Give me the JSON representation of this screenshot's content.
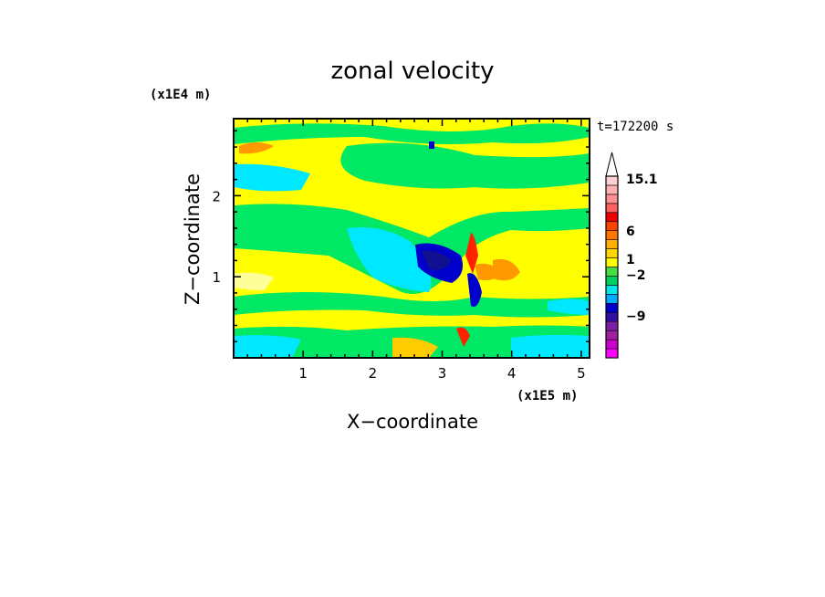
{
  "chart_data": {
    "type": "heatmap",
    "title": "zonal velocity",
    "xlabel": "X−coordinate",
    "ylabel": "Z−coordinate",
    "x_unit": "(x1E5 m)",
    "y_unit": "(x1E4 m)",
    "time_label": "t=172200 s",
    "xlim": [
      0,
      5.12
    ],
    "ylim": [
      0,
      2.95
    ],
    "x_ticks": [
      1,
      2,
      3,
      4,
      5
    ],
    "y_ticks": [
      1,
      2
    ],
    "colorbar": {
      "colors": [
        "#ff00ff",
        "#cc00cc",
        "#a020a0",
        "#7a1fa2",
        "#3010a0",
        "#0000cc",
        "#00aaff",
        "#00e8e8",
        "#00d060",
        "#44dd44",
        "#ffff00",
        "#ffd700",
        "#ffb000",
        "#ff7700",
        "#ff4400",
        "#ee0000",
        "#ff6060",
        "#ff9090",
        "#ffb0b0",
        "#ffd0d0",
        "#ffffff"
      ],
      "labels": [
        "15.1",
        "6",
        "1",
        "−2",
        "−9"
      ]
    },
    "field_colors": {
      "background": "#ffff00",
      "pale_yellow": "#ffff99",
      "green": "#00e864",
      "cyan": "#00e8ff",
      "blue": "#0000cc",
      "navy": "#101090",
      "orange": "#ff9900",
      "red": "#ff2200",
      "gold": "#ffcc00"
    }
  }
}
